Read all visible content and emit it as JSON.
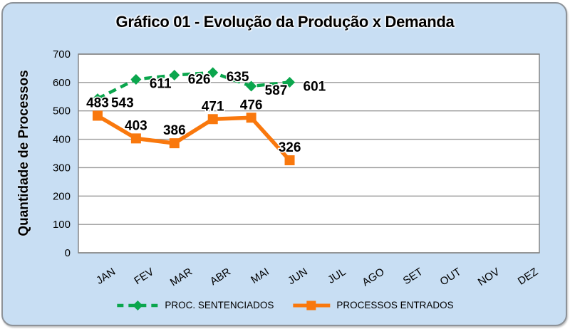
{
  "title": {
    "text": "Gráfico 01 - Evolução da Produção x Demanda"
  },
  "chart_data": {
    "type": "line",
    "title": "Gráfico 01 - Evolução da Produção x Demanda",
    "xlabel": "",
    "ylabel": "Quantidade de Processos",
    "ylim": [
      0,
      700
    ],
    "y_step": 100,
    "y_tick_labels": [
      "0",
      "100",
      "200",
      "300",
      "400",
      "500",
      "600",
      "700"
    ],
    "grid": true,
    "legend_position": "bottom",
    "categories": [
      "JAN",
      "FEV",
      "MAR",
      "ABR",
      "MAI",
      "JUN",
      "JUL",
      "AGO",
      "SET",
      "OUT",
      "NOV",
      "DEZ"
    ],
    "series": [
      {
        "name": "PROC. SENTENCIADOS",
        "color": "#0BA64D",
        "line_style": "dashed",
        "marker": "diamond",
        "label_position": "right",
        "values": [
          543,
          611,
          626,
          635,
          587,
          601,
          null,
          null,
          null,
          null,
          null,
          null
        ]
      },
      {
        "name": "PROCESSOS ENTRADOS",
        "color": "#F9780D",
        "line_style": "solid",
        "marker": "square",
        "label_position": "above",
        "values": [
          483,
          403,
          386,
          471,
          476,
          326,
          null,
          null,
          null,
          null,
          null,
          null
        ]
      }
    ],
    "colors": {
      "frame_background": "#C8DEF3",
      "frame_border": "#8D9298",
      "plot_background": "#FFFFFF",
      "gridline": "#9A9A9A",
      "plot_border": "#7F7F7F",
      "text": "#000000"
    }
  }
}
